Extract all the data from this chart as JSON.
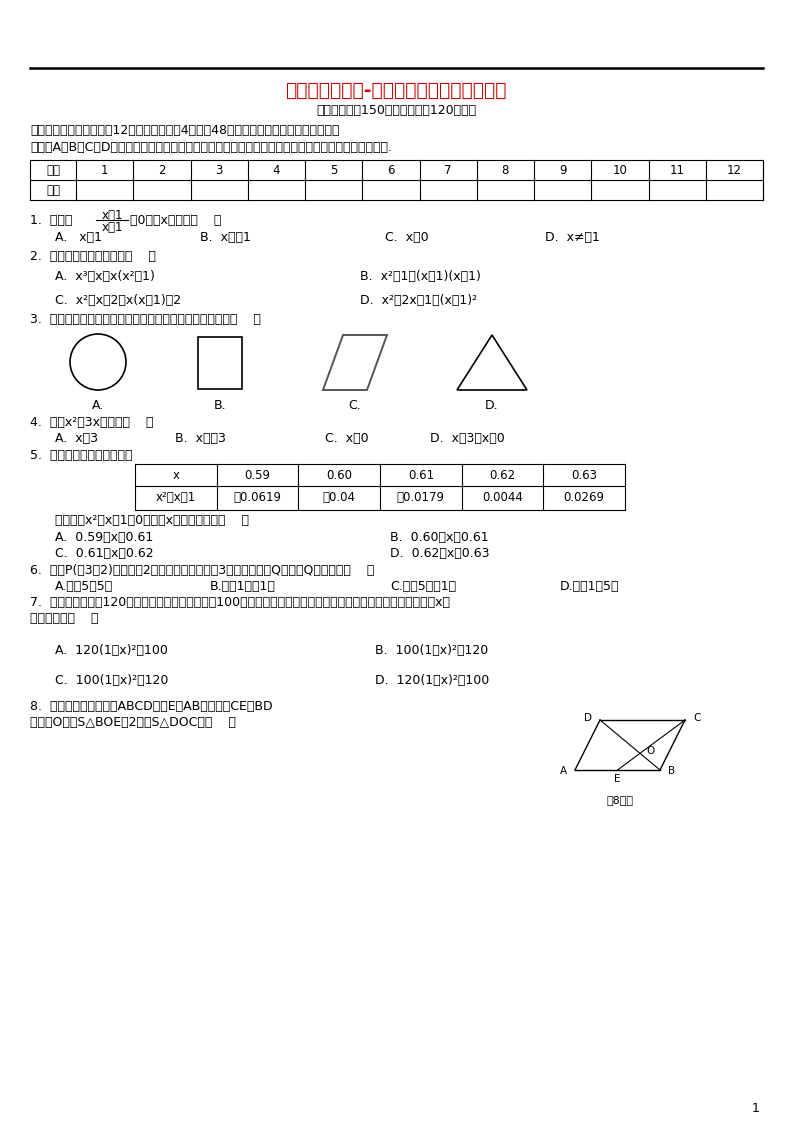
{
  "title": "重庆市重庆一中-八年级数学下学期期末试题",
  "subtitle": "（本试卷满分150分，考试时间120分钟）",
  "section1": "一、选择题：（本大题共12个小题，每小题4分，共48分）在每个小题的下面，都给出了",
  "section1b": "代号为A、B、C、D的四个答案，其中只有一个是正确的，请将各小题所选答案的标号填入对应的表格内.",
  "table_headers": [
    "题号",
    "1",
    "2",
    "3",
    "4",
    "5",
    "6",
    "7",
    "8",
    "9",
    "10",
    "11",
    "12"
  ],
  "table_row2": [
    "答案",
    "",
    "",
    "",
    "",
    "",
    "",
    "",
    "",
    "",
    "",
    "",
    ""
  ],
  "bg_color": "#ffffff",
  "text_color": "#000000",
  "title_color": "#cc0000",
  "page_num": "1"
}
